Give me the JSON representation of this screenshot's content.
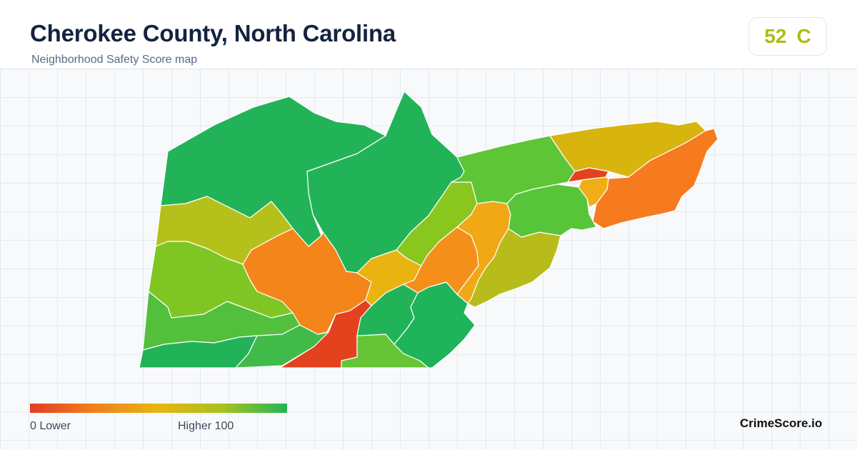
{
  "header": {
    "title": "Cherokee County, North Carolina",
    "subtitle": "Neighborhood Safety Score map"
  },
  "score": {
    "value": "52",
    "grade": "C",
    "color": "#aebd14"
  },
  "legend": {
    "min_label": "0  Lower",
    "max_label": "Higher  100",
    "colors": [
      "#e43c24",
      "#f2801c",
      "#e8b512",
      "#a6c21c",
      "#1fb656"
    ]
  },
  "brand": "CrimeScore.io",
  "map": {
    "regions": [
      {
        "name": "north-central",
        "color": "#22b359"
      },
      {
        "name": "northwest",
        "color": "#22b359"
      },
      {
        "name": "west-upper",
        "color": "#b5c11a"
      },
      {
        "name": "west-middle",
        "color": "#7fc625"
      },
      {
        "name": "southwest",
        "color": "#52c03c"
      },
      {
        "name": "southwest-bottom",
        "color": "#22b359"
      },
      {
        "name": "south-center-west",
        "color": "#40bb4a"
      },
      {
        "name": "central-orange",
        "color": "#f4851a"
      },
      {
        "name": "south-red",
        "color": "#e4421f"
      },
      {
        "name": "south-center-green",
        "color": "#66c536"
      },
      {
        "name": "center-east-green",
        "color": "#22b359"
      },
      {
        "name": "southeast-green",
        "color": "#1fb35a"
      },
      {
        "name": "center-yellow",
        "color": "#e9b411"
      },
      {
        "name": "center-lime",
        "color": "#8ac71e"
      },
      {
        "name": "east-orange",
        "color": "#f4901a"
      },
      {
        "name": "east-amber",
        "color": "#f0a815"
      },
      {
        "name": "east-olive",
        "color": "#b8bc1a"
      },
      {
        "name": "east-green",
        "color": "#58c43a"
      },
      {
        "name": "northeast-lime",
        "color": "#5ec536"
      },
      {
        "name": "northeast-gold",
        "color": "#d8b40f"
      },
      {
        "name": "far-east-orange",
        "color": "#f67b1f"
      },
      {
        "name": "notch-red",
        "color": "#e4421f"
      },
      {
        "name": "notch-amber",
        "color": "#f0ad15"
      }
    ]
  }
}
